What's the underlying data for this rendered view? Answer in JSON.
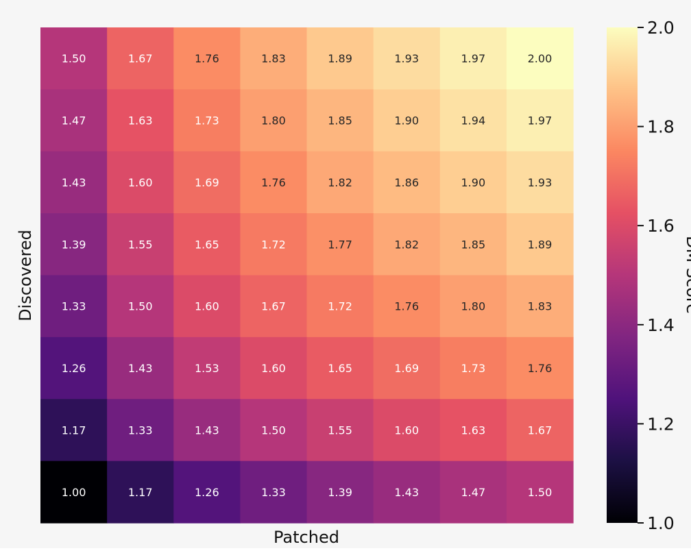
{
  "chart_data": {
    "type": "heatmap",
    "xlabel": "Patched",
    "ylabel": "Discovered",
    "colorbar": {
      "label": "DM Score",
      "ticks": [
        "1.0",
        "1.2",
        "1.4",
        "1.6",
        "1.8",
        "2.0"
      ],
      "range": [
        1.0,
        2.0
      ],
      "colormap": "magma"
    },
    "rows": [
      [
        "1.50",
        "1.67",
        "1.76",
        "1.83",
        "1.89",
        "1.93",
        "1.97",
        "2.00"
      ],
      [
        "1.47",
        "1.63",
        "1.73",
        "1.80",
        "1.85",
        "1.90",
        "1.94",
        "1.97"
      ],
      [
        "1.43",
        "1.60",
        "1.69",
        "1.76",
        "1.82",
        "1.86",
        "1.90",
        "1.93"
      ],
      [
        "1.39",
        "1.55",
        "1.65",
        "1.72",
        "1.77",
        "1.82",
        "1.85",
        "1.89"
      ],
      [
        "1.33",
        "1.50",
        "1.60",
        "1.67",
        "1.72",
        "1.76",
        "1.80",
        "1.83"
      ],
      [
        "1.26",
        "1.43",
        "1.53",
        "1.60",
        "1.65",
        "1.69",
        "1.73",
        "1.76"
      ],
      [
        "1.17",
        "1.33",
        "1.43",
        "1.50",
        "1.55",
        "1.60",
        "1.63",
        "1.67"
      ],
      [
        "1.00",
        "1.17",
        "1.26",
        "1.33",
        "1.39",
        "1.43",
        "1.47",
        "1.50"
      ]
    ]
  }
}
